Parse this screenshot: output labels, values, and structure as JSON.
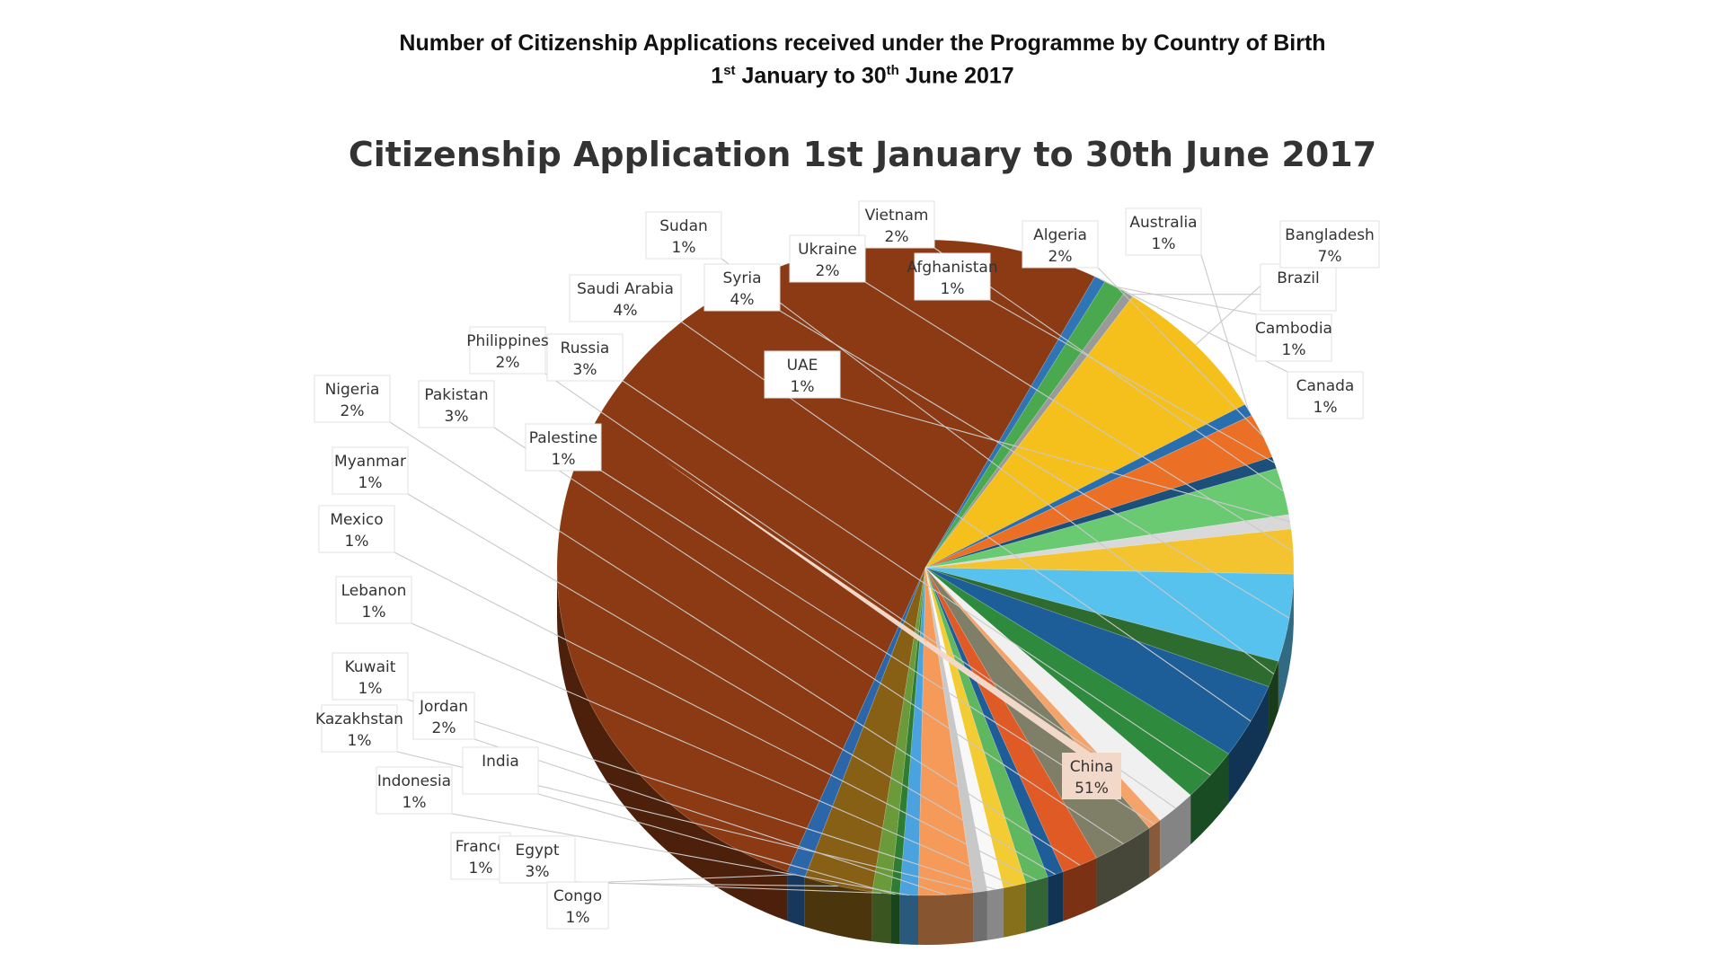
{
  "document": {
    "title": "Number of Citizenship Applications received under the Programme by Country of Birth",
    "period": {
      "prefix": "1",
      "sup1": "st",
      "middle": " January to 30",
      "sup2": "th",
      "suffix": " June 2017"
    }
  },
  "chart_data": {
    "type": "pie",
    "title": "Citizenship Application 1st January to 30th June 2017",
    "unit": "%",
    "label_style": "callout boxes with leader lines, category name and percentage",
    "legend": "none",
    "categories": [
      "China",
      "Canada",
      "Cambodia",
      "Brazil",
      "Bangladesh",
      "Australia",
      "Algeria",
      "Afghanistan",
      "Vietnam",
      "UAE",
      "Ukraine",
      "Syria",
      "Sudan",
      "Saudi Arabia",
      "Russia",
      "Philippines",
      "Palestine",
      "Pakistan",
      "Nigeria",
      "Myanmar",
      "Mexico",
      "Lebanon",
      "Kuwait",
      "Kazakhstan",
      "Jordan",
      "Indonesia",
      "India",
      "France",
      "Egypt",
      "Congo"
    ],
    "value_labels": [
      "51%",
      "1%",
      "1%",
      "",
      "7%",
      "1%",
      "2%",
      "1%",
      "2%",
      "1%",
      "2%",
      "4%",
      "1%",
      "4%",
      "3%",
      "2%",
      "1%",
      "3%",
      "2%",
      "1%",
      "1%",
      "1%",
      "1%",
      "1%",
      "2%",
      "1%",
      "",
      "1%",
      "3%",
      "1%"
    ],
    "values": [
      51.5,
      0.5,
      1,
      0.4,
      7.2,
      0.6,
      2.2,
      0.6,
      2.3,
      0.7,
      2.2,
      4.3,
      1.3,
      3.7,
      2.6,
      1.8,
      0.6,
      2.7,
      1.6,
      0.7,
      1,
      1,
      0.7,
      0.6,
      2.4,
      0.8,
      0.4,
      0.8,
      3,
      0.8
    ],
    "colors": [
      "#8b3a14",
      "#2f74b5",
      "#4aa84f",
      "#9a9a9a",
      "#f5bf1c",
      "#2a6fad",
      "#ec6f26",
      "#1c4f7a",
      "#6aca72",
      "#d9d9d9",
      "#f4c430",
      "#58c2ef",
      "#2e6b2e",
      "#1e5e98",
      "#2e8b3e",
      "#f0f0f0",
      "#f4a46a",
      "#7f7f68",
      "#e05a25",
      "#1f5d99",
      "#5fb85f",
      "#f3cb32",
      "#f8f8f8",
      "#c8c8c8",
      "#f59a58",
      "#4aa3df",
      "#2e7d32",
      "#6a9a3a",
      "#876015",
      "#2a66a8"
    ]
  }
}
